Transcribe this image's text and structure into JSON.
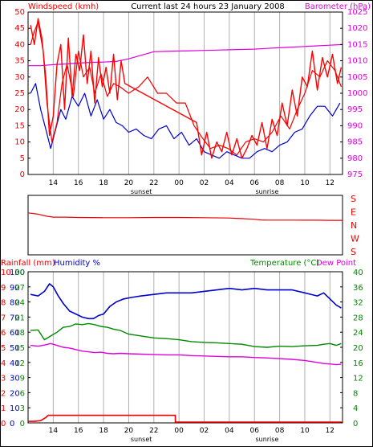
{
  "colors": {
    "wind": "#ee0000",
    "gust": "#ff0000",
    "avg_wind": "#0000cc",
    "baro": "#dd00dd",
    "dir": "#ee0000",
    "humidity": "#0000cc",
    "temperature": "#008800",
    "dewpoint": "#dd00dd",
    "rain": "#ee0000",
    "grid": "#b0b0b0",
    "frame": "#000000"
  },
  "header": {
    "left_label": "Windspeed (kmh)",
    "center_title": "Current last 24 hours 23 January 2008",
    "right_label": "Barometer (hPa)"
  },
  "time_axis": {
    "labels": [
      {
        "hour": 14,
        "text": "14"
      },
      {
        "hour": 16,
        "text": "16"
      },
      {
        "hour": 18,
        "text": "18"
      },
      {
        "hour": 20,
        "text": "20"
      },
      {
        "hour": 22,
        "text": "22"
      },
      {
        "hour": 24,
        "text": "00"
      },
      {
        "hour": 26,
        "text": "02"
      },
      {
        "hour": 28,
        "text": "04"
      },
      {
        "hour": 30,
        "text": "06"
      },
      {
        "hour": 32,
        "text": "08"
      },
      {
        "hour": 34,
        "text": "10"
      },
      {
        "hour": 36,
        "text": "12"
      }
    ],
    "sunset": {
      "hour": 21,
      "text": "sunset"
    },
    "sunrise": {
      "hour": 31,
      "text": "sunrise"
    }
  },
  "wind_panel": {
    "wind_ticks": [
      "0",
      "5",
      "10",
      "15",
      "20",
      "25",
      "30",
      "35",
      "40",
      "45",
      "50"
    ],
    "baro_ticks": [
      "975",
      "980",
      "985",
      "990",
      "995",
      "1000",
      "1005",
      "1010",
      "1015",
      "1020",
      "1025"
    ]
  },
  "direction_panel": {
    "labels": [
      "S",
      "E",
      "N",
      "W",
      "S"
    ]
  },
  "bottom_panel": {
    "rain_label": "Rainfall (mm)",
    "humidity_label": "Humidity %",
    "temp_label": "Temperature (°C)",
    "dew_label": "Dew Point",
    "rain_ticks": [
      "0",
      "1",
      "2",
      "3",
      "4",
      "5",
      "6",
      "7",
      "8",
      "9",
      "10"
    ],
    "humidity_ticks": [
      "0",
      "10",
      "20",
      "30",
      "40",
      "50",
      "60",
      "70",
      "80",
      "90",
      "100"
    ],
    "temp_ticks": [
      "0",
      "4",
      "8",
      "12",
      "16",
      "20",
      "24",
      "28",
      "32",
      "36",
      "40"
    ],
    "temp_ticks_left": [
      "0",
      "3",
      "6",
      "9",
      "12",
      "15",
      "18",
      "21",
      "24",
      "27",
      "30"
    ]
  },
  "chart_data": [
    {
      "type": "line",
      "title": "Current last 24 hours 23 January 2008",
      "xlabel": "",
      "ylabel": "Windspeed (kmh)",
      "ylabel_right": "Barometer (hPa)",
      "x_unit": "hour",
      "xlim": [
        12,
        37
      ],
      "ylim": [
        0,
        50
      ],
      "ylim_right": [
        975,
        1025
      ],
      "grid": true,
      "series": [
        {
          "name": "Windspeed (kmh)",
          "color": "#ee0000",
          "axis": "left",
          "x": [
            12.2,
            12.5,
            12.8,
            13.2,
            13.5,
            13.9,
            14.3,
            14.7,
            15.1,
            15.6,
            16,
            16.4,
            16.9,
            17.3,
            17.8,
            18.3,
            18.8,
            19.3,
            20,
            20.8,
            21.5,
            22.3,
            23,
            23.8,
            24.5,
            25.2,
            25.9,
            26.5,
            27.2,
            27.9,
            28.6,
            29.3,
            30,
            30.7,
            31.4,
            32.1,
            32.8,
            33.4,
            34,
            34.6,
            35.2,
            35.8,
            36.4,
            36.9
          ],
          "y": [
            40,
            44,
            47,
            38,
            22,
            10,
            16,
            28,
            34,
            24,
            38,
            30,
            33,
            25,
            31,
            24,
            28,
            27,
            25,
            27,
            30,
            25,
            25,
            22,
            22,
            15,
            11,
            8,
            9,
            8,
            6,
            10,
            11,
            10,
            13,
            18,
            14,
            20,
            25,
            32,
            30,
            35,
            32,
            27
          ]
        },
        {
          "name": "Gust (kmh)",
          "color": "#ff0000",
          "axis": "left",
          "x": [
            12.2,
            12.5,
            12.8,
            13.1,
            13.4,
            13.7,
            14,
            14.3,
            14.6,
            14.9,
            15.2,
            15.5,
            15.8,
            16.1,
            16.4,
            16.7,
            17,
            17.3,
            17.6,
            17.9,
            18.2,
            18.5,
            18.8,
            19.1,
            19.4,
            19.7,
            25.4,
            25.8,
            26.2,
            26.6,
            27,
            27.4,
            27.8,
            28.2,
            28.6,
            29,
            29.4,
            29.8,
            30.2,
            30.6,
            31,
            31.4,
            31.8,
            32.2,
            32.6,
            33,
            33.4,
            33.8,
            34.2,
            34.6,
            35,
            35.4,
            35.8,
            36.2,
            36.6,
            36.9
          ],
          "y": [
            46,
            40,
            48,
            42,
            30,
            12,
            18,
            34,
            40,
            20,
            42,
            24,
            37,
            32,
            43,
            28,
            38,
            22,
            36,
            27,
            33,
            25,
            37,
            23,
            35,
            28,
            16,
            6,
            13,
            5,
            10,
            7,
            13,
            6,
            11,
            5,
            8,
            12,
            9,
            16,
            8,
            17,
            12,
            22,
            15,
            26,
            18,
            30,
            27,
            38,
            26,
            36,
            30,
            37,
            28,
            33
          ]
        },
        {
          "name": "Average wind (kmh)",
          "color": "#0000cc",
          "axis": "left",
          "x": [
            12.2,
            12.6,
            13,
            13.4,
            13.8,
            14.2,
            14.6,
            15,
            15.5,
            16,
            16.5,
            17,
            17.5,
            18,
            18.5,
            19,
            19.5,
            20,
            20.6,
            21.2,
            21.8,
            22.4,
            23,
            23.6,
            24.2,
            24.8,
            25.4,
            26,
            26.6,
            27.2,
            27.8,
            28.4,
            29,
            29.6,
            30.2,
            30.8,
            31.4,
            32,
            32.6,
            33.2,
            33.8,
            34.4,
            35,
            35.6,
            36.2,
            36.8
          ],
          "y": [
            25,
            28,
            20,
            14,
            8,
            14,
            20,
            17,
            24,
            21,
            25,
            18,
            23,
            17,
            20,
            16,
            15,
            13,
            14,
            12,
            11,
            14,
            15,
            11,
            13,
            9,
            11,
            7,
            6,
            5,
            7,
            6,
            5,
            5,
            7,
            8,
            7,
            9,
            10,
            13,
            14,
            18,
            21,
            21,
            18,
            22
          ]
        },
        {
          "name": "Barometer (hPa)",
          "color": "#dd00dd",
          "axis": "right",
          "x": [
            12,
            13,
            14,
            15,
            16,
            17,
            18,
            19,
            20,
            21,
            22,
            23,
            24,
            25,
            26,
            27,
            28,
            29,
            30,
            31,
            32,
            33,
            34,
            35,
            36,
            37
          ],
          "y": [
            1008.5,
            1008.5,
            1008.8,
            1009,
            1009.3,
            1009.5,
            1009.6,
            1009.8,
            1010.6,
            1011.7,
            1012.8,
            1012.9,
            1013,
            1013.1,
            1013.2,
            1013.3,
            1013.4,
            1013.5,
            1013.6,
            1013.8,
            1014,
            1014.2,
            1014.4,
            1014.6,
            1014.8,
            1015
          ]
        }
      ]
    },
    {
      "type": "line",
      "title": "",
      "ylabel": "Wind direction",
      "x_unit": "hour",
      "xlim": [
        12,
        37
      ],
      "y_categories": [
        "S",
        "E",
        "N",
        "W",
        "S"
      ],
      "ylim": [
        0,
        360
      ],
      "series": [
        {
          "name": "Wind direction",
          "color": "#ee0000",
          "x": [
            12,
            12.8,
            13.5,
            14,
            15,
            16,
            17,
            18,
            20,
            22,
            24,
            26,
            28,
            28.5,
            29,
            29.5,
            30,
            30.5,
            31,
            32,
            33,
            34,
            35,
            36,
            37
          ],
          "y": [
            263,
            254,
            240,
            234,
            234,
            232,
            231,
            230,
            230,
            232,
            232,
            230,
            228,
            226,
            224,
            222,
            220,
            215,
            214,
            214,
            214,
            213,
            213,
            212,
            212
          ]
        }
      ]
    },
    {
      "type": "line",
      "title": "",
      "ylabel": "Rainfall (mm)",
      "ylabel_2": "Humidity %",
      "ylabel_right": "Temperature (°C)",
      "ylabel_right_2": "Dew Point",
      "x_unit": "hour",
      "xlim": [
        12,
        37
      ],
      "ylim": [
        0,
        10
      ],
      "ylim_humidity": [
        0,
        100
      ],
      "ylim_right": [
        0,
        40
      ],
      "grid": true,
      "series": [
        {
          "name": "Humidity %",
          "color": "#0000cc",
          "axis": "humidity",
          "x": [
            12.2,
            12.8,
            13.3,
            13.7,
            14,
            14.4,
            14.8,
            15.3,
            15.8,
            16.3,
            16.8,
            17.2,
            17.6,
            18,
            18.5,
            19,
            19.6,
            20.2,
            21,
            22,
            23,
            24,
            25,
            26,
            27,
            28,
            29,
            30,
            31,
            32,
            33,
            34,
            35,
            35.5,
            36,
            36.5,
            36.9
          ],
          "y": [
            85,
            84,
            87,
            92,
            90,
            84,
            79,
            74,
            72,
            70,
            69,
            69,
            71,
            72,
            77,
            80,
            82,
            83,
            84,
            85,
            86,
            86,
            86,
            87,
            88,
            89,
            88,
            89,
            88,
            88,
            88,
            86,
            84,
            86,
            82,
            78,
            76
          ]
        },
        {
          "name": "Temperature (°C)",
          "color": "#008800",
          "axis": "right",
          "x": [
            12.2,
            12.8,
            13.3,
            13.8,
            14.3,
            14.8,
            15.3,
            15.8,
            16.3,
            16.8,
            17.3,
            17.8,
            18.3,
            18.8,
            19.3,
            20,
            21,
            22,
            23,
            24,
            25,
            26,
            27,
            28,
            29,
            30,
            31,
            32,
            33,
            34,
            35,
            35.5,
            36,
            36.5,
            36.9
          ],
          "y": [
            24.5,
            24.6,
            22,
            23,
            24,
            25.3,
            25.5,
            26.2,
            26,
            26.3,
            26,
            25.5,
            25.3,
            24.8,
            24.5,
            23.5,
            23,
            22.5,
            22.3,
            22,
            21.5,
            21.3,
            21.2,
            21,
            20.8,
            20.2,
            20,
            20.3,
            20.2,
            20.4,
            20.5,
            20.8,
            21,
            20.5,
            21
          ]
        },
        {
          "name": "Dew Point",
          "color": "#dd00dd",
          "axis": "right",
          "x": [
            12.2,
            12.8,
            13.3,
            13.8,
            14.3,
            14.8,
            15.3,
            15.8,
            16.3,
            16.8,
            17.3,
            17.8,
            18.3,
            18.8,
            19.3,
            20,
            21,
            22,
            23,
            24,
            25,
            26,
            27,
            28,
            29,
            30,
            31,
            32,
            33,
            34,
            35,
            35.5,
            36,
            36.5,
            36.9
          ],
          "y": [
            20.5,
            20.3,
            20.6,
            21,
            20.5,
            20,
            19.8,
            19.4,
            19,
            18.8,
            18.6,
            18.7,
            18.4,
            18.3,
            18.4,
            18.3,
            18.2,
            18.1,
            18,
            18,
            17.8,
            17.7,
            17.6,
            17.5,
            17.5,
            17.3,
            17.2,
            17,
            16.8,
            16.5,
            16,
            15.7,
            15.6,
            15.4,
            15.5
          ]
        },
        {
          "name": "Rainfall (mm)",
          "color": "#ee0000",
          "axis": "left",
          "x": [
            12,
            12.5,
            13,
            13.4,
            13.6,
            14,
            16,
            18,
            20,
            22,
            23.7,
            23.71,
            24,
            26,
            28,
            30,
            32,
            34,
            36,
            37
          ],
          "y": [
            0.1,
            0.1,
            0.15,
            0.35,
            0.5,
            0.5,
            0.5,
            0.5,
            0.5,
            0.5,
            0.5,
            0.05,
            0.05,
            0.05,
            0.05,
            0.05,
            0.05,
            0.05,
            0.05,
            0.05
          ]
        }
      ]
    }
  ]
}
